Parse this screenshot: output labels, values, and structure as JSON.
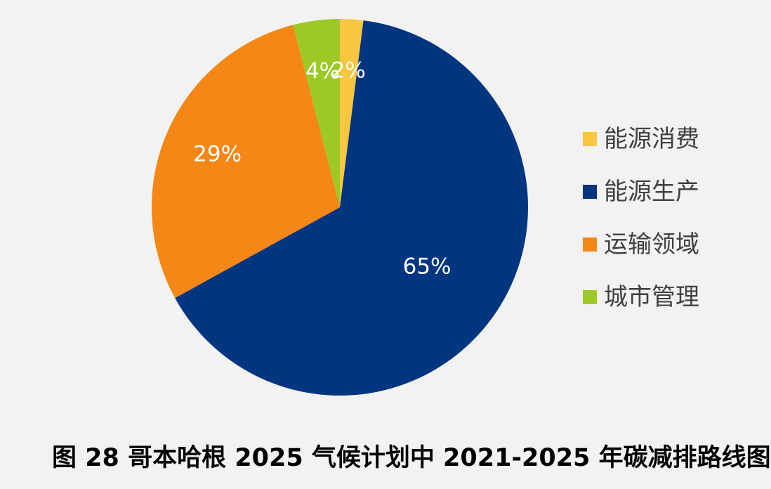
{
  "caption": "图 28 哥本哈根 2025 气候计划中 2021-2025 年碳减排路线图",
  "chart_data": {
    "type": "pie",
    "start_angle_deg": 0,
    "direction": "clockwise",
    "slices": [
      {
        "name": "能源消费",
        "value": 2,
        "label": "2%",
        "color": "#f9c642"
      },
      {
        "name": "能源生产",
        "value": 65,
        "label": "65%",
        "color": "#00357f"
      },
      {
        "name": "运输领域",
        "value": 29,
        "label": "29%",
        "color": "#f58717"
      },
      {
        "name": "城市管理",
        "value": 4,
        "label": "4%",
        "color": "#9cc925"
      }
    ],
    "legend_position": "right"
  }
}
